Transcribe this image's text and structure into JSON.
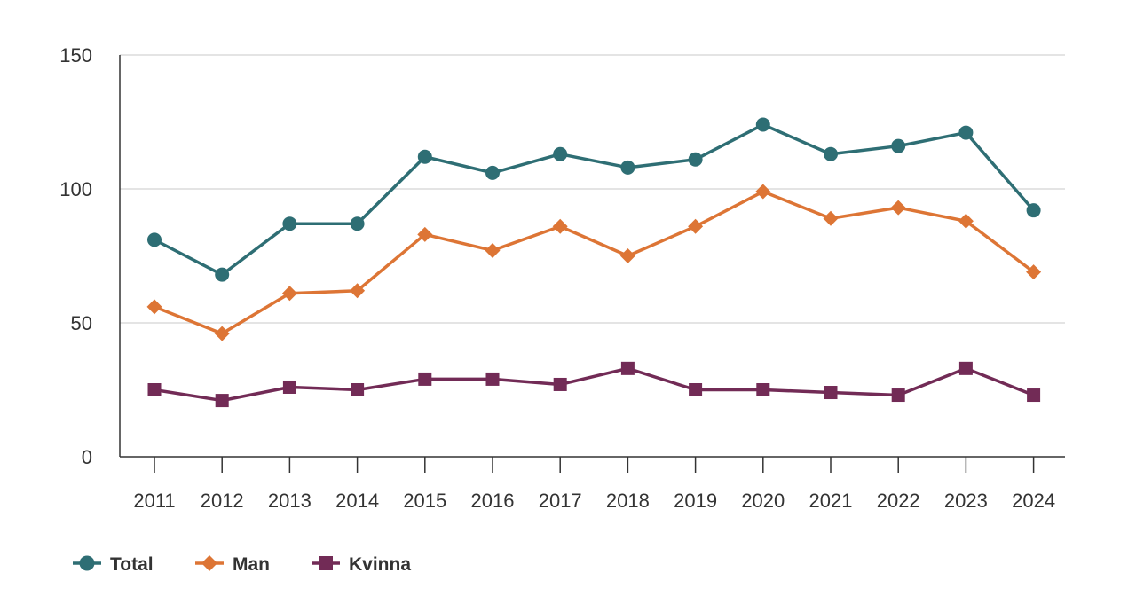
{
  "chart_data": {
    "type": "line",
    "title": "",
    "xlabel": "",
    "ylabel": "",
    "categories": [
      "2011",
      "2012",
      "2013",
      "2014",
      "2015",
      "2016",
      "2017",
      "2018",
      "2019",
      "2020",
      "2021",
      "2022",
      "2023",
      "2024"
    ],
    "ylim": [
      0,
      150
    ],
    "yticks": [
      0,
      50,
      100,
      150
    ],
    "grid": true,
    "legend_position": "bottom-left",
    "series": [
      {
        "name": "Total",
        "marker": "circle",
        "color": "#2e6e74",
        "values": [
          81,
          68,
          87,
          87,
          112,
          106,
          113,
          108,
          111,
          124,
          113,
          116,
          121,
          92
        ]
      },
      {
        "name": "Man",
        "marker": "diamond",
        "color": "#dd7535",
        "values": [
          56,
          46,
          61,
          62,
          83,
          77,
          86,
          75,
          86,
          99,
          89,
          93,
          88,
          69
        ]
      },
      {
        "name": "Kvinna",
        "marker": "square",
        "color": "#722b56",
        "values": [
          25,
          21,
          26,
          25,
          29,
          29,
          27,
          33,
          25,
          25,
          24,
          23,
          33,
          23
        ]
      }
    ]
  }
}
